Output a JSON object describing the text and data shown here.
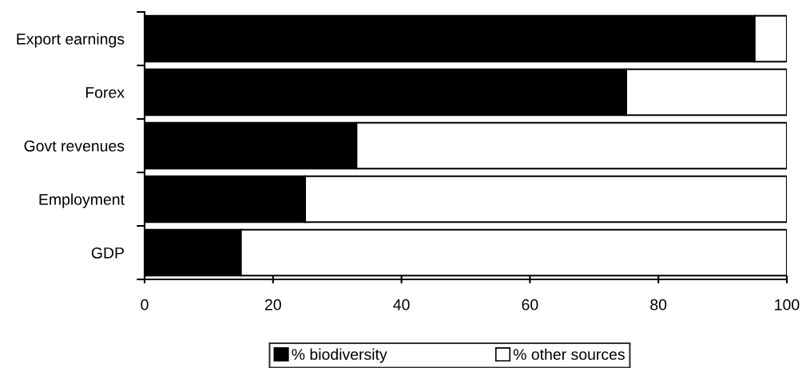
{
  "chart_data": {
    "type": "bar",
    "orientation": "horizontal",
    "stacked": true,
    "categories": [
      "Export earnings",
      "Forex",
      "Govt revenues",
      "Employment",
      "GDP"
    ],
    "series": [
      {
        "name": "% biodiversity",
        "color": "#000000",
        "values": [
          95,
          75,
          33,
          25,
          15
        ]
      },
      {
        "name": "% other sources",
        "color": "#ffffff",
        "values": [
          5,
          25,
          67,
          75,
          85
        ]
      }
    ],
    "xlim": [
      0,
      100
    ],
    "xticks": [
      0,
      20,
      40,
      60,
      80,
      100
    ],
    "grid": false,
    "legend": "bottom"
  }
}
